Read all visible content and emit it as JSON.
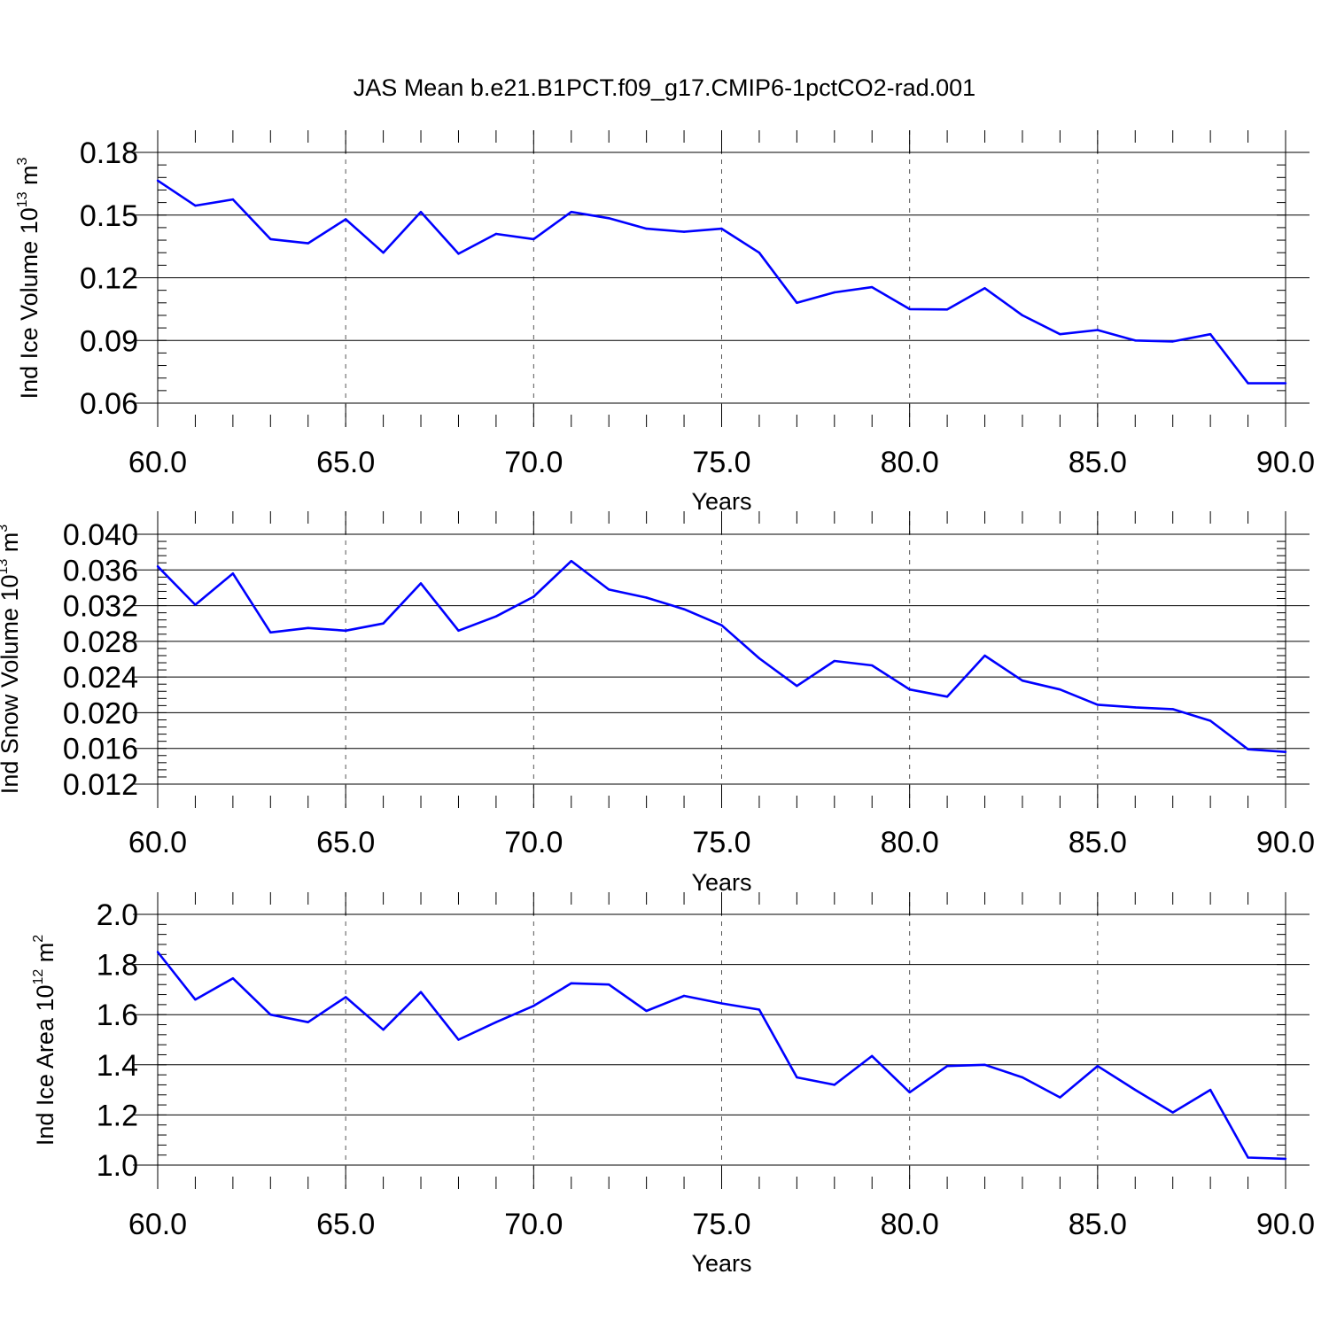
{
  "title": "JAS Mean b.e21.B1PCT.f09_g17.CMIP6-1pctCO2-rad.001",
  "colors": {
    "line": "#0000ff",
    "axis": "#000000",
    "grid": "#555555"
  },
  "chart_data": [
    {
      "type": "line",
      "xlabel": "Years",
      "ylabel": {
        "text": "Ind Ice Volume 10",
        "exponent": "13",
        "unit": " m",
        "unit_exponent": "3"
      },
      "xlim": [
        60,
        90
      ],
      "ylim": [
        0.06,
        0.18
      ],
      "x_ticks": [
        "60.0",
        "65.0",
        "70.0",
        "75.0",
        "80.0",
        "85.0",
        "90.0"
      ],
      "x_tick_values": [
        60,
        65,
        70,
        75,
        80,
        85,
        90
      ],
      "y_ticks": [
        "0.06",
        "0.09",
        "0.12",
        "0.15",
        "0.18"
      ],
      "y_tick_values": [
        0.06,
        0.09,
        0.12,
        0.15,
        0.18
      ],
      "grid": "vertical dashed at major x ticks",
      "x": [
        60,
        61,
        62,
        63,
        64,
        65,
        66,
        67,
        68,
        69,
        70,
        71,
        72,
        73,
        74,
        75,
        76,
        77,
        78,
        79,
        80,
        81,
        82,
        83,
        84,
        85,
        86,
        87,
        88,
        89,
        90
      ],
      "values": [
        0.1665,
        0.1545,
        0.1575,
        0.1385,
        0.1365,
        0.148,
        0.132,
        0.1515,
        0.1315,
        0.141,
        0.1385,
        0.1515,
        0.1485,
        0.1435,
        0.142,
        0.1435,
        0.132,
        0.108,
        0.113,
        0.1155,
        0.105,
        0.1048,
        0.115,
        0.102,
        0.093,
        0.095,
        0.09,
        0.0895,
        0.093,
        0.0695,
        0.0695
      ]
    },
    {
      "type": "line",
      "xlabel": "Years",
      "ylabel": {
        "text": "Ind Snow Volume 10",
        "exponent": "13",
        "unit": " m",
        "unit_exponent": "3"
      },
      "xlim": [
        60,
        90
      ],
      "ylim": [
        0.012,
        0.04
      ],
      "x_ticks": [
        "60.0",
        "65.0",
        "70.0",
        "75.0",
        "80.0",
        "85.0",
        "90.0"
      ],
      "x_tick_values": [
        60,
        65,
        70,
        75,
        80,
        85,
        90
      ],
      "y_ticks": [
        "0.012",
        "0.016",
        "0.020",
        "0.024",
        "0.028",
        "0.032",
        "0.036",
        "0.040"
      ],
      "y_tick_values": [
        0.012,
        0.016,
        0.02,
        0.024,
        0.028,
        0.032,
        0.036,
        0.04
      ],
      "grid": "vertical dashed at major x ticks",
      "x": [
        60,
        61,
        62,
        63,
        64,
        65,
        66,
        67,
        68,
        69,
        70,
        71,
        72,
        73,
        74,
        75,
        76,
        77,
        78,
        79,
        80,
        81,
        82,
        83,
        84,
        85,
        86,
        87,
        88,
        89,
        90
      ],
      "values": [
        0.0364,
        0.0321,
        0.0356,
        0.029,
        0.0295,
        0.0292,
        0.03,
        0.0345,
        0.0292,
        0.0308,
        0.033,
        0.037,
        0.0338,
        0.0329,
        0.0316,
        0.0298,
        0.0261,
        0.023,
        0.0258,
        0.0253,
        0.0226,
        0.0218,
        0.0264,
        0.0236,
        0.0226,
        0.0209,
        0.0206,
        0.0204,
        0.0191,
        0.0159,
        0.0156
      ]
    },
    {
      "type": "line",
      "xlabel": "Years",
      "ylabel": {
        "text": "Ind Ice Area 10",
        "exponent": "12",
        "unit": " m",
        "unit_exponent": "2"
      },
      "xlim": [
        60,
        90
      ],
      "ylim": [
        1.0,
        2.0
      ],
      "x_ticks": [
        "60.0",
        "65.0",
        "70.0",
        "75.0",
        "80.0",
        "85.0",
        "90.0"
      ],
      "x_tick_values": [
        60,
        65,
        70,
        75,
        80,
        85,
        90
      ],
      "y_ticks": [
        "1.0",
        "1.2",
        "1.4",
        "1.6",
        "1.8",
        "2.0"
      ],
      "y_tick_values": [
        1.0,
        1.2,
        1.4,
        1.6,
        1.8,
        2.0
      ],
      "grid": "vertical dashed at major x ticks",
      "x": [
        60,
        61,
        62,
        63,
        64,
        65,
        66,
        67,
        68,
        69,
        70,
        71,
        72,
        73,
        74,
        75,
        76,
        77,
        78,
        79,
        80,
        81,
        82,
        83,
        84,
        85,
        86,
        87,
        88,
        89,
        90
      ],
      "values": [
        1.85,
        1.66,
        1.745,
        1.6,
        1.57,
        1.67,
        1.54,
        1.69,
        1.5,
        1.57,
        1.635,
        1.725,
        1.72,
        1.615,
        1.675,
        1.645,
        1.62,
        1.35,
        1.32,
        1.435,
        1.29,
        1.395,
        1.4,
        1.35,
        1.27,
        1.395,
        1.3,
        1.21,
        1.3,
        1.03,
        1.025
      ]
    }
  ]
}
